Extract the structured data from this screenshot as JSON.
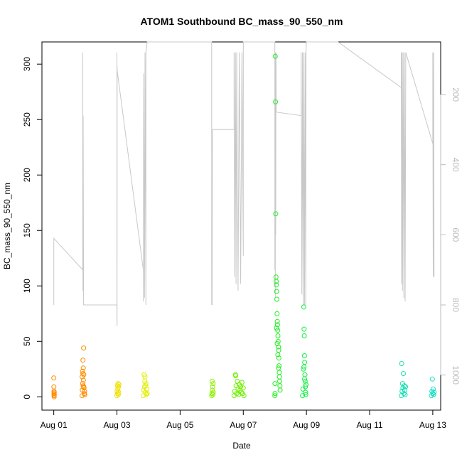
{
  "chart_data": {
    "type": "scatter",
    "title": "ATOM1 Southbound BC_mass_90_550_nm",
    "xlabel": "Date",
    "ylabel": "BC_mass_90_550_nm",
    "xlim": [
      "2016-07-31T15:00",
      "2016-08-13T06:00"
    ],
    "ylim": [
      -12,
      320
    ],
    "x_ticks": [
      {
        "label": "Aug 01",
        "date": "2016-08-01"
      },
      {
        "label": "Aug 03",
        "date": "2016-08-03"
      },
      {
        "label": "Aug 05",
        "date": "2016-08-05"
      },
      {
        "label": "Aug 07",
        "date": "2016-08-07"
      },
      {
        "label": "Aug 09",
        "date": "2016-08-09"
      },
      {
        "label": "Aug 11",
        "date": "2016-08-11"
      },
      {
        "label": "Aug 13",
        "date": "2016-08-13"
      }
    ],
    "y_ticks": [
      "0",
      "50",
      "100",
      "150",
      "200",
      "250",
      "300"
    ],
    "y2_ticks": [
      "200",
      "400",
      "600",
      "800",
      "1000"
    ],
    "y2lim_reversed": [
      50,
      1100
    ],
    "grid": false,
    "series": [
      {
        "date": "2016-08-01",
        "color": "#FF8C00",
        "points": [
          [
            "2016-08-01T00:00",
            17
          ],
          [
            "2016-08-01T00:05",
            9
          ],
          [
            "2016-08-01T00:10",
            5
          ],
          [
            "2016-08-01T00:12",
            3
          ],
          [
            "2016-08-01T00:15",
            1
          ],
          [
            "2016-08-01T00:18",
            0
          ],
          [
            "2016-08-01T00:20",
            4
          ],
          [
            "2016-08-01T00:22",
            2
          ]
        ]
      },
      {
        "date": "2016-08-01b",
        "color": "#FF8C00",
        "points": [
          [
            "2016-08-01T21:30",
            1
          ],
          [
            "2016-08-01T21:40",
            6
          ],
          [
            "2016-08-01T21:50",
            23
          ],
          [
            "2016-08-01T22:00",
            12
          ],
          [
            "2016-08-01T22:10",
            33
          ],
          [
            "2016-08-01T22:20",
            10
          ],
          [
            "2016-08-01T22:30",
            15
          ],
          [
            "2016-08-01T22:40",
            44
          ],
          [
            "2016-08-01T22:50",
            20
          ],
          [
            "2016-08-01T23:00",
            8
          ],
          [
            "2016-08-01T23:10",
            3
          ],
          [
            "2016-08-01T23:20",
            5
          ],
          [
            "2016-08-01T23:30",
            2
          ],
          [
            "2016-08-01T21:35",
            18
          ],
          [
            "2016-08-01T22:25",
            26
          ],
          [
            "2016-08-01T22:05",
            21
          ],
          [
            "2016-08-01T22:45",
            9
          ]
        ]
      },
      {
        "date": "2016-08-03",
        "color": "#F0E000",
        "points": [
          [
            "2016-08-03T00:00",
            1
          ],
          [
            "2016-08-03T00:10",
            5
          ],
          [
            "2016-08-03T00:20",
            10
          ],
          [
            "2016-08-03T00:30",
            3
          ],
          [
            "2016-08-03T00:40",
            7
          ],
          [
            "2016-08-03T00:50",
            12
          ],
          [
            "2016-08-03T01:00",
            2
          ],
          [
            "2016-08-03T01:10",
            9
          ],
          [
            "2016-08-03T01:20",
            4
          ],
          [
            "2016-08-03T01:30",
            11
          ]
        ]
      },
      {
        "date": "2016-08-03b",
        "color": "#E0F000",
        "points": [
          [
            "2016-08-03T20:00",
            1
          ],
          [
            "2016-08-03T20:20",
            6
          ],
          [
            "2016-08-03T20:40",
            20
          ],
          [
            "2016-08-03T21:00",
            9
          ],
          [
            "2016-08-03T21:20",
            18
          ],
          [
            "2016-08-03T21:40",
            4
          ],
          [
            "2016-08-03T22:00",
            12
          ],
          [
            "2016-08-03T22:20",
            2
          ],
          [
            "2016-08-03T22:40",
            7
          ],
          [
            "2016-08-03T23:00",
            3
          ],
          [
            "2016-08-03T21:10",
            14
          ],
          [
            "2016-08-03T21:50",
            10
          ]
        ]
      },
      {
        "date": "2016-08-06",
        "color": "#90F000",
        "points": [
          [
            "2016-08-06T00:00",
            1
          ],
          [
            "2016-08-06T00:10",
            3
          ],
          [
            "2016-08-06T00:20",
            14
          ],
          [
            "2016-08-06T00:30",
            6
          ],
          [
            "2016-08-06T00:40",
            9
          ],
          [
            "2016-08-06T00:50",
            2
          ],
          [
            "2016-08-06T01:00",
            12
          ],
          [
            "2016-08-06T01:10",
            4
          ]
        ]
      },
      {
        "date": "2016-08-06b",
        "color": "#70F000",
        "points": [
          [
            "2016-08-06T17:00",
            1
          ],
          [
            "2016-08-06T17:30",
            5
          ],
          [
            "2016-08-06T18:00",
            20
          ],
          [
            "2016-08-06T18:30",
            10
          ],
          [
            "2016-08-06T19:00",
            3
          ],
          [
            "2016-08-06T19:30",
            14
          ],
          [
            "2016-08-06T20:00",
            7
          ],
          [
            "2016-08-06T20:30",
            2
          ],
          [
            "2016-08-06T21:00",
            11
          ],
          [
            "2016-08-06T21:30",
            6
          ],
          [
            "2016-08-06T22:00",
            9
          ],
          [
            "2016-08-06T22:30",
            4
          ],
          [
            "2016-08-06T23:00",
            13
          ],
          [
            "2016-08-06T23:30",
            3
          ],
          [
            "2016-08-07T00:00",
            8
          ],
          [
            "2016-08-07T00:30",
            1
          ],
          [
            "2016-08-06T18:15",
            19
          ]
        ]
      },
      {
        "date": "2016-08-08",
        "color": "#20F020",
        "points": [
          [
            "2016-08-08T00:00",
            1
          ],
          [
            "2016-08-08T00:20",
            307
          ],
          [
            "2016-08-08T00:30",
            266
          ],
          [
            "2016-08-08T00:40",
            165
          ],
          [
            "2016-08-08T00:50",
            108
          ],
          [
            "2016-08-08T01:00",
            104
          ],
          [
            "2016-08-08T01:10",
            101
          ],
          [
            "2016-08-08T01:20",
            95
          ],
          [
            "2016-08-08T01:30",
            88
          ],
          [
            "2016-08-08T01:40",
            75
          ],
          [
            "2016-08-08T01:50",
            68
          ],
          [
            "2016-08-08T02:00",
            65
          ],
          [
            "2016-08-08T02:10",
            60
          ],
          [
            "2016-08-08T02:20",
            55
          ],
          [
            "2016-08-08T02:30",
            50
          ],
          [
            "2016-08-08T02:40",
            45
          ],
          [
            "2016-08-08T02:50",
            42
          ],
          [
            "2016-08-08T03:00",
            35
          ],
          [
            "2016-08-08T03:10",
            28
          ],
          [
            "2016-08-08T03:20",
            22
          ],
          [
            "2016-08-08T03:30",
            18
          ],
          [
            "2016-08-08T03:40",
            14
          ],
          [
            "2016-08-08T03:50",
            10
          ],
          [
            "2016-08-08T04:00",
            6
          ],
          [
            "2016-08-08T00:10",
            3
          ],
          [
            "2016-08-08T00:05",
            12
          ],
          [
            "2016-08-08T01:15",
            62
          ],
          [
            "2016-08-08T01:45",
            48
          ],
          [
            "2016-08-08T02:15",
            38
          ],
          [
            "2016-08-08T02:45",
            26
          ]
        ]
      },
      {
        "date": "2016-08-08b",
        "color": "#10F040",
        "points": [
          [
            "2016-08-08T21:00",
            1
          ],
          [
            "2016-08-08T21:20",
            7
          ],
          [
            "2016-08-08T21:40",
            25
          ],
          [
            "2016-08-08T22:00",
            81
          ],
          [
            "2016-08-08T22:10",
            61
          ],
          [
            "2016-08-08T22:20",
            55
          ],
          [
            "2016-08-08T22:30",
            37
          ],
          [
            "2016-08-08T22:40",
            31
          ],
          [
            "2016-08-08T22:50",
            20
          ],
          [
            "2016-08-08T23:00",
            14
          ],
          [
            "2016-08-08T23:10",
            9
          ],
          [
            "2016-08-08T23:20",
            4
          ],
          [
            "2016-08-08T23:30",
            2
          ],
          [
            "2016-08-08T23:40",
            11
          ],
          [
            "2016-08-08T22:05",
            27
          ],
          [
            "2016-08-08T22:35",
            16
          ]
        ]
      },
      {
        "date": "2016-08-12",
        "color": "#10E0B0",
        "points": [
          [
            "2016-08-12T00:00",
            1
          ],
          [
            "2016-08-12T00:20",
            30
          ],
          [
            "2016-08-12T00:40",
            5
          ],
          [
            "2016-08-12T01:00",
            12
          ],
          [
            "2016-08-12T01:20",
            8
          ],
          [
            "2016-08-12T01:40",
            21
          ],
          [
            "2016-08-12T02:00",
            3
          ],
          [
            "2016-08-12T02:20",
            10
          ],
          [
            "2016-08-12T02:40",
            6
          ],
          [
            "2016-08-12T03:00",
            2
          ],
          [
            "2016-08-12T03:20",
            9
          ]
        ]
      },
      {
        "date": "2016-08-12b",
        "color": "#10E0C0",
        "points": [
          [
            "2016-08-12T23:00",
            1
          ],
          [
            "2016-08-12T23:20",
            5
          ],
          [
            "2016-08-12T23:40",
            16
          ],
          [
            "2016-08-13T00:00",
            3
          ],
          [
            "2016-08-13T00:20",
            7
          ],
          [
            "2016-08-13T00:40",
            2
          ],
          [
            "2016-08-13T01:00",
            4
          ]
        ]
      }
    ],
    "altitude_trace": {
      "color": "#c8c8c8",
      "points": [
        [
          "2016-08-01T00:00",
          800
        ],
        [
          "2016-08-01T00:00",
          610
        ],
        [
          "2016-08-01T22:00",
          700
        ],
        [
          "2016-08-01T22:00",
          80
        ],
        [
          "2016-08-01T22:10",
          760
        ],
        [
          "2016-08-01T22:20",
          260
        ],
        [
          "2016-08-01T22:30",
          500
        ],
        [
          "2016-08-01T22:40",
          800
        ],
        [
          "2016-08-01T22:40",
          800
        ],
        [
          "2016-08-03T00:00",
          800
        ],
        [
          "2016-08-03T00:00",
          80
        ],
        [
          "2016-08-03T00:00",
          830
        ],
        [
          "2016-08-03T00:05",
          860
        ],
        [
          "2016-08-03T00:10",
          120
        ],
        [
          "2016-08-03T00:10",
          130
        ],
        [
          "2016-08-03T20:00",
          700
        ],
        [
          "2016-08-03T20:00",
          790
        ],
        [
          "2016-08-03T20:20",
          140
        ],
        [
          "2016-08-03T21:00",
          780
        ],
        [
          "2016-08-03T21:20",
          80
        ],
        [
          "2016-08-03T22:00",
          800
        ],
        [
          "2016-08-03T22:00",
          80
        ],
        [
          "2016-08-03T23:00",
          30
        ],
        [
          "2016-08-06T00:00",
          30
        ],
        [
          "2016-08-06T00:00",
          800
        ],
        [
          "2016-08-06T00:10",
          330
        ],
        [
          "2016-08-06T00:20",
          800
        ],
        [
          "2016-08-06T00:30",
          300
        ],
        [
          "2016-08-06T01:00",
          300
        ],
        [
          "2016-08-06T17:00",
          300
        ],
        [
          "2016-08-06T17:00",
          80
        ],
        [
          "2016-08-06T17:30",
          720
        ],
        [
          "2016-08-06T18:00",
          80
        ],
        [
          "2016-08-06T18:30",
          740
        ],
        [
          "2016-08-06T19:00",
          80
        ],
        [
          "2016-08-06T20:00",
          760
        ],
        [
          "2016-08-06T21:00",
          80
        ],
        [
          "2016-08-06T22:00",
          740
        ],
        [
          "2016-08-06T23:00",
          80
        ],
        [
          "2016-08-07T00:00",
          660
        ],
        [
          "2016-08-07T00:00",
          30
        ],
        [
          "2016-08-08T00:00",
          30
        ],
        [
          "2016-08-08T00:00",
          700
        ],
        [
          "2016-08-08T00:10",
          80
        ],
        [
          "2016-08-08T00:20",
          780
        ],
        [
          "2016-08-08T00:30",
          80
        ],
        [
          "2016-08-08T00:40",
          600
        ],
        [
          "2016-08-08T00:50",
          80
        ],
        [
          "2016-08-08T01:00",
          250
        ],
        [
          "2016-08-08T20:00",
          260
        ],
        [
          "2016-08-08T20:00",
          80
        ],
        [
          "2016-08-08T20:30",
          770
        ],
        [
          "2016-08-08T21:00",
          80
        ],
        [
          "2016-08-08T21:30",
          800
        ],
        [
          "2016-08-08T22:00",
          80
        ],
        [
          "2016-08-08T22:30",
          800
        ],
        [
          "2016-08-08T23:00",
          80
        ],
        [
          "2016-08-08T23:30",
          800
        ],
        [
          "2016-08-08T23:40",
          80
        ],
        [
          "2016-08-09T00:00",
          40
        ],
        [
          "2016-08-10T00:00",
          30
        ],
        [
          "2016-08-12T00:00",
          180
        ],
        [
          "2016-08-12T00:00",
          80
        ],
        [
          "2016-08-12T00:20",
          740
        ],
        [
          "2016-08-12T00:40",
          80
        ],
        [
          "2016-08-12T01:00",
          760
        ],
        [
          "2016-08-12T01:30",
          80
        ],
        [
          "2016-08-12T02:00",
          780
        ],
        [
          "2016-08-12T02:30",
          80
        ],
        [
          "2016-08-12T03:00",
          790
        ],
        [
          "2016-08-12T03:30",
          80
        ],
        [
          "2016-08-13T00:00",
          340
        ],
        [
          "2016-08-13T00:00",
          80
        ],
        [
          "2016-08-13T00:20",
          720
        ],
        [
          "2016-08-13T00:40",
          80
        ],
        [
          "2016-08-13T01:00",
          720
        ]
      ]
    }
  }
}
